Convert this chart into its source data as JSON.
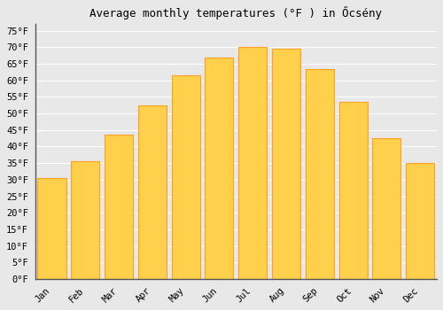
{
  "title": "Average monthly temperatures (°F ) in Őcsény",
  "months": [
    "Jan",
    "Feb",
    "Mar",
    "Apr",
    "May",
    "Jun",
    "Jul",
    "Aug",
    "Sep",
    "Oct",
    "Nov",
    "Dec"
  ],
  "values": [
    30.5,
    35.5,
    43.5,
    52.5,
    61.5,
    67.0,
    70.0,
    69.5,
    63.5,
    53.5,
    42.5,
    35.0
  ],
  "bar_color_light": "#FFD04C",
  "bar_color_dark": "#FFA020",
  "background_color": "#e8e8e8",
  "grid_color": "#ffffff",
  "ylim": [
    0,
    77
  ],
  "yticks": [
    0,
    5,
    10,
    15,
    20,
    25,
    30,
    35,
    40,
    45,
    50,
    55,
    60,
    65,
    70,
    75
  ],
  "title_fontsize": 9,
  "tick_fontsize": 7.5,
  "font_family": "monospace"
}
